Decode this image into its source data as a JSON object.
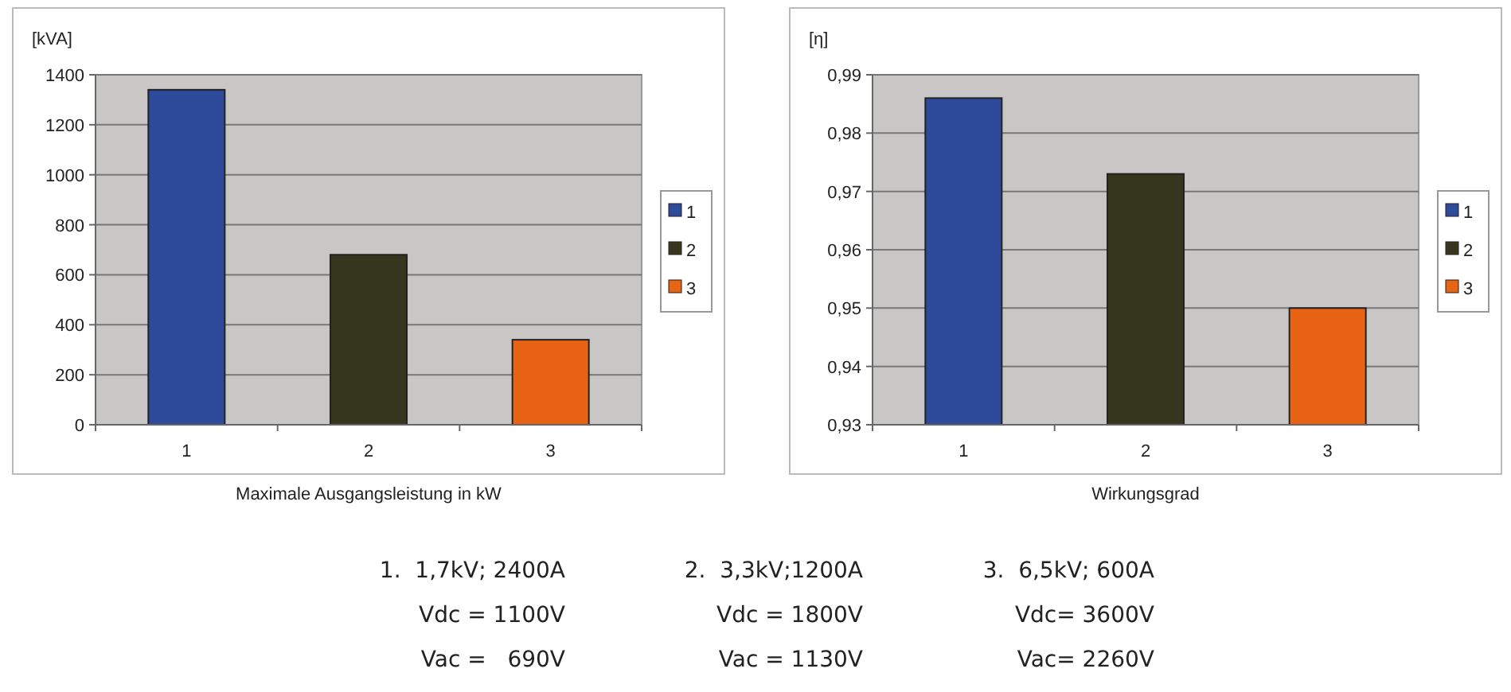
{
  "chart_data": [
    {
      "type": "bar",
      "xlabel": "Maximale Ausgangsleistung in kW",
      "ylabel": "[kVA]",
      "categories": [
        "1",
        "2",
        "3"
      ],
      "series": [
        {
          "name": "1",
          "color": "#2e4a9a",
          "values": [
            1340,
            null,
            null
          ]
        },
        {
          "name": "2",
          "color": "#36361e",
          "values": [
            null,
            680,
            null
          ]
        },
        {
          "name": "3",
          "color": "#e86414",
          "values": [
            null,
            null,
            340
          ]
        }
      ],
      "ylim": [
        0,
        1400
      ],
      "yticks": [
        0,
        200,
        400,
        600,
        800,
        1000,
        1200,
        1400
      ],
      "grid": "y",
      "legend": "right"
    },
    {
      "type": "bar",
      "xlabel": "Wirkungsgrad",
      "ylabel": "[η]",
      "categories": [
        "1",
        "2",
        "3"
      ],
      "series": [
        {
          "name": "1",
          "color": "#2e4a9a",
          "values": [
            0.986,
            null,
            null
          ]
        },
        {
          "name": "2",
          "color": "#36361e",
          "values": [
            null,
            0.973,
            null
          ]
        },
        {
          "name": "3",
          "color": "#e86414",
          "values": [
            null,
            null,
            0.95
          ]
        }
      ],
      "ylim": [
        0.93,
        0.99
      ],
      "yticks": [
        {
          "value": 0.93,
          "label": "0,93"
        },
        {
          "value": 0.94,
          "label": "0,94"
        },
        {
          "value": 0.95,
          "label": "0,95"
        },
        {
          "value": 0.96,
          "label": "0,96"
        },
        {
          "value": 0.97,
          "label": "0,97"
        },
        {
          "value": 0.98,
          "label": "0,98"
        },
        {
          "value": 0.99,
          "label": "0,99"
        }
      ],
      "grid": "y",
      "legend": "right"
    },
    {
      "type": "other",
      "annotations": [
        "1.  1,7kV; 2400A",
        "Vdc = 1100V",
        "Vac =   690V",
        "2.  3,3kV;1200A",
        "Vdc = 1800V",
        "Vac = 1130V",
        "3.  6,5kV; 600A",
        "Vdc= 3600V",
        "Vac= 2260V"
      ]
    }
  ]
}
